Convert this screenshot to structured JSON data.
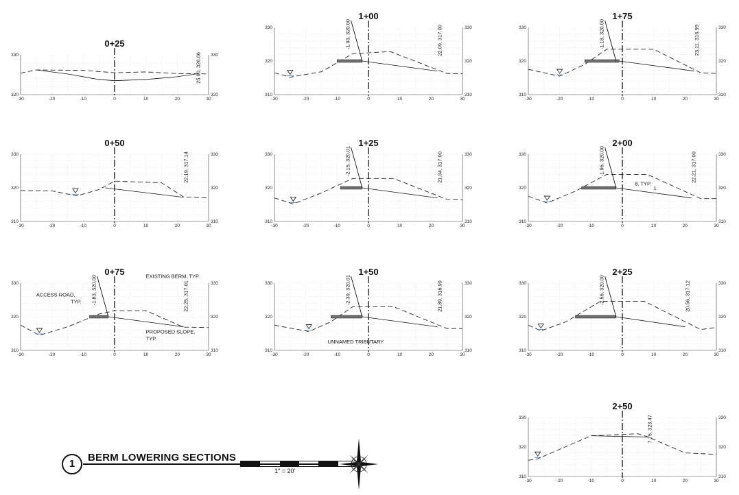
{
  "title": {
    "number": "1",
    "text": "BERM LOWERING SECTIONS",
    "scale": "1\" = 20'"
  },
  "x_ticks": [
    "-30",
    "-20",
    "-10",
    "0",
    "10",
    "20",
    "30"
  ],
  "panels": [
    {
      "id": "sta-0-25",
      "station": "0+25",
      "ylim": [
        320,
        330
      ],
      "y_ticks": [
        "320",
        "330"
      ],
      "elev_label": "25.60, 326.06",
      "water": null,
      "existing": [
        [
          -30,
          325.4
        ],
        [
          -25,
          326.2
        ],
        [
          -10,
          326.1
        ],
        [
          0,
          325.5
        ],
        [
          10,
          325.7
        ],
        [
          20,
          325.3
        ],
        [
          30,
          325.2
        ]
      ],
      "proposed": [
        [
          -25,
          326.2
        ],
        [
          -15,
          325.2
        ],
        [
          -5,
          323.8
        ],
        [
          0,
          323.5
        ],
        [
          10,
          323.8
        ],
        [
          20,
          324.5
        ],
        [
          26,
          325.2
        ]
      ],
      "road": null,
      "annotations": []
    },
    {
      "id": "sta-1-00",
      "station": "1+00",
      "ylim": [
        310,
        330
      ],
      "y_ticks": [
        "310",
        "320",
        "330"
      ],
      "elev_label": "22.09, 317.00",
      "callout": "-1.93, 320.00",
      "water": -25,
      "existing": [
        [
          -30,
          316.5
        ],
        [
          -25,
          315.2
        ],
        [
          -15,
          316.8
        ],
        [
          -5,
          322.2
        ],
        [
          7,
          322.8
        ],
        [
          25,
          316.3
        ],
        [
          30,
          316.2
        ]
      ],
      "proposed": [
        [
          -2,
          320
        ],
        [
          22,
          317
        ]
      ],
      "road": [
        -10,
        -2
      ],
      "annotations": []
    },
    {
      "id": "sta-1-75",
      "station": "1+75",
      "ylim": [
        310,
        330
      ],
      "y_ticks": [
        "310",
        "320",
        "330"
      ],
      "elev_label": "23.11, 316.99",
      "callout": "-1.18, 320.00",
      "water": -20,
      "existing": [
        [
          -30,
          317.5
        ],
        [
          -20,
          315.5
        ],
        [
          -12,
          319
        ],
        [
          -5,
          323.5
        ],
        [
          10,
          323.5
        ],
        [
          25,
          316.5
        ],
        [
          30,
          316.3
        ]
      ],
      "proposed": [
        [
          -1,
          320
        ],
        [
          23,
          317
        ]
      ],
      "road": [
        -12,
        -1
      ],
      "annotations": []
    },
    {
      "id": "sta-0-50",
      "station": "0+50",
      "ylim": [
        310,
        330
      ],
      "y_ticks": [
        "310",
        "320",
        "330"
      ],
      "elev_label": "22.19, 317.14",
      "water": -12.5,
      "existing": [
        [
          -30,
          319.2
        ],
        [
          -20,
          319.1
        ],
        [
          -12,
          317.6
        ],
        [
          -5,
          319.5
        ],
        [
          0,
          322
        ],
        [
          15,
          321.5
        ],
        [
          22,
          317.3
        ],
        [
          30,
          317
        ]
      ],
      "proposed": [
        [
          -3,
          320
        ],
        [
          22,
          317.2
        ]
      ],
      "road": null,
      "annotations": []
    },
    {
      "id": "sta-1-25",
      "station": "1+25",
      "ylim": [
        310,
        330
      ],
      "y_ticks": [
        "310",
        "320",
        "330"
      ],
      "elev_label": "21.94, 317.00",
      "callout": "-2.15, 320.01",
      "water": -24,
      "existing": [
        [
          -30,
          317
        ],
        [
          -24,
          315.2
        ],
        [
          -15,
          318.5
        ],
        [
          -5,
          322.8
        ],
        [
          8,
          322.8
        ],
        [
          25,
          316.6
        ],
        [
          30,
          316.5
        ]
      ],
      "proposed": [
        [
          -2,
          320
        ],
        [
          22,
          317
        ]
      ],
      "road": [
        -9,
        -2
      ],
      "annotations": []
    },
    {
      "id": "sta-2-00",
      "station": "2+00",
      "ylim": [
        310,
        330
      ],
      "y_ticks": [
        "310",
        "320",
        "330"
      ],
      "elev_label": "22.21, 317.00",
      "callout": "-1.96, 320.00",
      "water": -24,
      "existing": [
        [
          -30,
          317.5
        ],
        [
          -24,
          315.5
        ],
        [
          -15,
          319
        ],
        [
          -5,
          324
        ],
        [
          8,
          324
        ],
        [
          25,
          316.8
        ],
        [
          30,
          316.8
        ]
      ],
      "proposed": [
        [
          -2,
          320
        ],
        [
          22,
          317
        ]
      ],
      "road": [
        -13,
        -2
      ],
      "annotations": [
        {
          "text": "8, TYP.",
          "dx": 4,
          "dy": 320.7
        },
        {
          "text": "1",
          "dx": 10,
          "dy": 319.4
        }
      ]
    },
    {
      "id": "sta-0-75",
      "station": "0+75",
      "ylim": [
        310,
        330
      ],
      "y_ticks": [
        "310",
        "320",
        "330"
      ],
      "elev_label": "22.25, 317.01",
      "callout": "-1.83, 320.00",
      "water": -24,
      "existing": [
        [
          -30,
          317.5
        ],
        [
          -24,
          314.5
        ],
        [
          -15,
          317
        ],
        [
          -5,
          320.8
        ],
        [
          0,
          321.8
        ],
        [
          10,
          321.8
        ],
        [
          22,
          316.9
        ],
        [
          30,
          316.8
        ]
      ],
      "proposed": [
        [
          -2,
          320
        ],
        [
          22,
          317
        ]
      ],
      "road": [
        -8,
        -2
      ],
      "annotations": [
        {
          "text": "ACCESS ROAD,",
          "dx": -25,
          "dy": 326
        },
        {
          "text": "TYP.",
          "dx": -14,
          "dy": 324
        },
        {
          "text": "EXISTING BERM, TYP.",
          "dx": 10,
          "dy": 331.5
        },
        {
          "text": "PROPOSED SLOPE,",
          "dx": 10,
          "dy": 315
        },
        {
          "text": "TYP.",
          "dx": 10,
          "dy": 313
        }
      ]
    },
    {
      "id": "sta-1-50",
      "station": "1+50",
      "ylim": [
        310,
        330
      ],
      "y_ticks": [
        "310",
        "320",
        "330"
      ],
      "elev_label": "21.89, 316.99",
      "callout": "-2.39, 320.01",
      "water": -19,
      "existing": [
        [
          -30,
          317.5
        ],
        [
          -19,
          315.6
        ],
        [
          -12,
          318.5
        ],
        [
          -5,
          323
        ],
        [
          8,
          323
        ],
        [
          25,
          316.5
        ],
        [
          30,
          316.5
        ]
      ],
      "proposed": [
        [
          -2,
          320
        ],
        [
          22,
          317
        ]
      ],
      "road": [
        -12,
        -2
      ],
      "annotations": [
        {
          "text": "UNNAMED TRIBUTARY",
          "dx": -13,
          "dy": 312
        }
      ]
    },
    {
      "id": "sta-2-25",
      "station": "2+25",
      "ylim": [
        310,
        330
      ],
      "y_ticks": [
        "310",
        "320",
        "330"
      ],
      "elev_label": "20.56, 317.12",
      "callout": "-2.56, 320.00",
      "water": -26,
      "existing": [
        [
          -30,
          317.5
        ],
        [
          -26,
          315.8
        ],
        [
          -18,
          318.5
        ],
        [
          -7,
          324.6
        ],
        [
          7,
          324.6
        ],
        [
          25,
          316.2
        ],
        [
          30,
          316.8
        ]
      ],
      "proposed": [
        [
          -2,
          320
        ],
        [
          20,
          317
        ]
      ],
      "road": [
        -15,
        -2
      ],
      "annotations": []
    },
    {
      "id": "sta-2-50",
      "station": "2+50",
      "ylim": [
        310,
        330
      ],
      "y_ticks": [
        "310",
        "320",
        "330"
      ],
      "elev_label": "7.75, 323.47",
      "water": -27,
      "existing": [
        [
          -30,
          315.5
        ],
        [
          -27,
          316
        ],
        [
          -10,
          323.8
        ],
        [
          5,
          324.5
        ],
        [
          8,
          323.5
        ],
        [
          20,
          318
        ],
        [
          30,
          317.5
        ]
      ],
      "proposed": [
        [
          -10,
          323.8
        ],
        [
          8,
          323.4
        ]
      ],
      "road": null,
      "annotations": []
    }
  ]
}
